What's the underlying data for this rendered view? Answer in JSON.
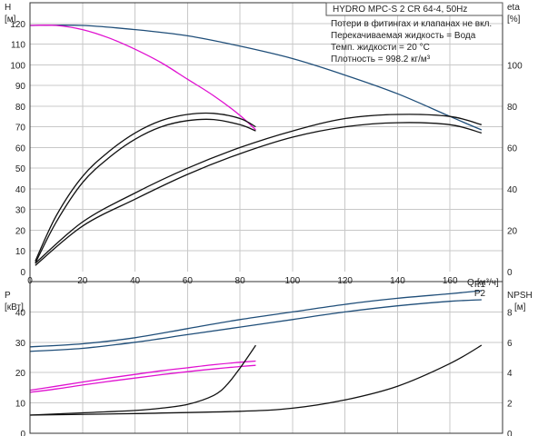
{
  "header": {
    "title": "HYDRO MPC-S 2 CR 64-4, 50Hz"
  },
  "notes": [
    "Потери в фитингах и клапанах не вкл.",
    "Перекачиваемая жидкость = Вода",
    "Темп. жидкости = 20 °C",
    "Плотность = 998.2 кг/м³"
  ],
  "colors": {
    "qh_full": "#1f4e79",
    "qh_single": "#e010d0",
    "eta": "#111111",
    "power_full": "#1f4e79",
    "power_single": "#e010d0",
    "npsh": "#111111"
  },
  "chart_data": [
    {
      "type": "line",
      "xlabel": "Q [м³/ч]",
      "ylabel": "H [м]",
      "y2label": "eta [%]",
      "xlim": [
        0,
        180
      ],
      "xticks": [
        0,
        20,
        40,
        60,
        80,
        100,
        120,
        140,
        160
      ],
      "ylim": [
        0,
        130
      ],
      "yticks": [
        0,
        10,
        20,
        30,
        40,
        50,
        60,
        70,
        80,
        90,
        100,
        110,
        120
      ],
      "y2lim": [
        0,
        130
      ],
      "y2ticks": [
        0,
        20,
        40,
        60,
        80,
        100
      ],
      "grid": true,
      "series": [
        {
          "id": "qh_full",
          "axis": "y",
          "x": [
            0,
            20,
            40,
            60,
            80,
            100,
            120,
            140,
            160,
            172
          ],
          "values": [
            119,
            119,
            117,
            114,
            109,
            103,
            95,
            86,
            75,
            68.5
          ]
        },
        {
          "id": "qh_single",
          "axis": "y",
          "x": [
            0,
            10,
            20,
            30,
            40,
            50,
            60,
            70,
            80,
            86
          ],
          "values": [
            119,
            119,
            117,
            113,
            107.5,
            101,
            93,
            85,
            75.5,
            68.5
          ]
        },
        {
          "id": "eta_single_1",
          "axis": "y2",
          "x": [
            2,
            10,
            20,
            30,
            40,
            50,
            60,
            70,
            80,
            86
          ],
          "values": [
            5,
            27,
            46,
            58,
            67,
            73,
            76,
            76.5,
            74,
            70
          ]
        },
        {
          "id": "eta_single_2",
          "axis": "y2",
          "x": [
            2,
            10,
            20,
            30,
            40,
            50,
            60,
            70,
            80,
            86
          ],
          "values": [
            4,
            24,
            43,
            55,
            64,
            70,
            73,
            73.5,
            71,
            68
          ]
        },
        {
          "id": "eta_full_1",
          "axis": "y2",
          "x": [
            2,
            20,
            40,
            60,
            80,
            100,
            120,
            140,
            160,
            172
          ],
          "values": [
            4,
            24,
            38,
            50,
            60,
            68,
            74,
            76,
            75,
            71
          ]
        },
        {
          "id": "eta_full_2",
          "axis": "y2",
          "x": [
            2,
            20,
            40,
            60,
            80,
            100,
            120,
            140,
            160,
            172
          ],
          "values": [
            3,
            22,
            35,
            47,
            57,
            65,
            70,
            72,
            71,
            67
          ]
        }
      ]
    },
    {
      "type": "line",
      "xlabel": "",
      "ylabel": "P [кВт]",
      "y2label": "NPSH [м]",
      "xlim": [
        0,
        180
      ],
      "ylim": [
        0,
        50
      ],
      "yticks": [
        0,
        10,
        20,
        30,
        40
      ],
      "y2lim": [
        0,
        10
      ],
      "y2ticks": [
        0,
        2,
        4,
        6,
        8
      ],
      "grid": true,
      "series": [
        {
          "id": "p1_full",
          "name": "P1",
          "axis": "y",
          "x": [
            0,
            20,
            40,
            60,
            80,
            100,
            120,
            140,
            160,
            172
          ],
          "values": [
            28.5,
            29.5,
            31.5,
            34.5,
            37.5,
            40,
            42.5,
            44.5,
            46,
            47
          ]
        },
        {
          "id": "p2_full",
          "name": "P2",
          "axis": "y",
          "x": [
            0,
            20,
            40,
            60,
            80,
            100,
            120,
            140,
            160,
            172
          ],
          "values": [
            27,
            28,
            30,
            32.5,
            35,
            37.5,
            40,
            42,
            43.5,
            44
          ]
        },
        {
          "id": "p1_single",
          "axis": "y",
          "x": [
            0,
            10,
            20,
            30,
            40,
            50,
            60,
            70,
            80,
            86
          ],
          "values": [
            14.2,
            15.5,
            16.9,
            18.2,
            19.4,
            20.6,
            21.6,
            22.6,
            23.4,
            23.8
          ]
        },
        {
          "id": "p2_single",
          "axis": "y",
          "x": [
            0,
            10,
            20,
            30,
            40,
            50,
            60,
            70,
            80,
            86
          ],
          "values": [
            13.5,
            14.6,
            15.9,
            17.1,
            18.2,
            19.3,
            20.3,
            21.2,
            22,
            22.4
          ]
        },
        {
          "id": "npsh_single",
          "axis": "y2",
          "x": [
            0,
            20,
            40,
            50,
            60,
            70,
            75,
            80,
            86
          ],
          "values": [
            1.2,
            1.35,
            1.5,
            1.65,
            1.9,
            2.5,
            3.2,
            4.3,
            5.8
          ]
        },
        {
          "id": "npsh_full",
          "axis": "y2",
          "x": [
            0,
            40,
            80,
            100,
            120,
            140,
            160,
            172
          ],
          "values": [
            1.2,
            1.3,
            1.45,
            1.65,
            2.2,
            3.1,
            4.6,
            5.8
          ]
        }
      ]
    }
  ]
}
